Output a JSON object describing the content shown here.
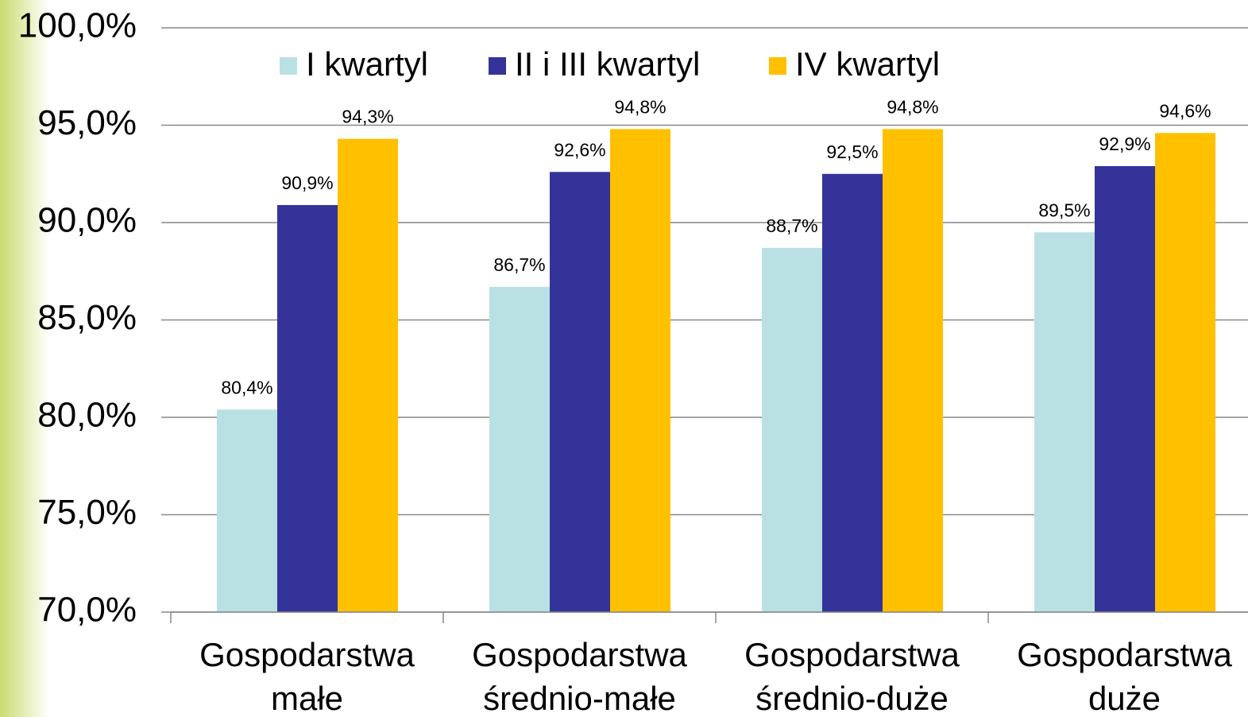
{
  "chart_data": {
    "type": "bar",
    "categories": [
      [
        "Gospodarstwa",
        "małe"
      ],
      [
        "Gospodarstwa",
        "średnio-małe"
      ],
      [
        "Gospodarstwa",
        "średnio-duże"
      ],
      [
        "Gospodarstwa",
        "duże"
      ]
    ],
    "series": [
      {
        "name": "I kwartyl",
        "color": "#b9e1e4",
        "values": [
          80.4,
          86.7,
          88.7,
          89.5
        ],
        "value_labels": [
          "80,4%",
          "86,7%",
          "88,7%",
          "89,5%"
        ]
      },
      {
        "name": "II i III kwartyl",
        "color": "#333399",
        "values": [
          90.9,
          92.6,
          92.5,
          92.9
        ],
        "value_labels": [
          "90,9%",
          "92,6%",
          "92,5%",
          "92,9%"
        ]
      },
      {
        "name": "IV kwartyl",
        "color": "#ffc000",
        "values": [
          94.3,
          94.8,
          94.8,
          94.6
        ],
        "value_labels": [
          "94,3%",
          "94,8%",
          "94,8%",
          "94,6%"
        ]
      }
    ],
    "ylim": [
      70,
      100
    ],
    "yticks": [
      {
        "value": 70,
        "label": "70,0%"
      },
      {
        "value": 75,
        "label": "75,0%"
      },
      {
        "value": 80,
        "label": "80,0%"
      },
      {
        "value": 85,
        "label": "85,0%"
      },
      {
        "value": 90,
        "label": "90,0%"
      },
      {
        "value": 95,
        "label": "95,0%"
      },
      {
        "value": 100,
        "label": "100,0%"
      }
    ],
    "grid": true,
    "legend": "top"
  }
}
